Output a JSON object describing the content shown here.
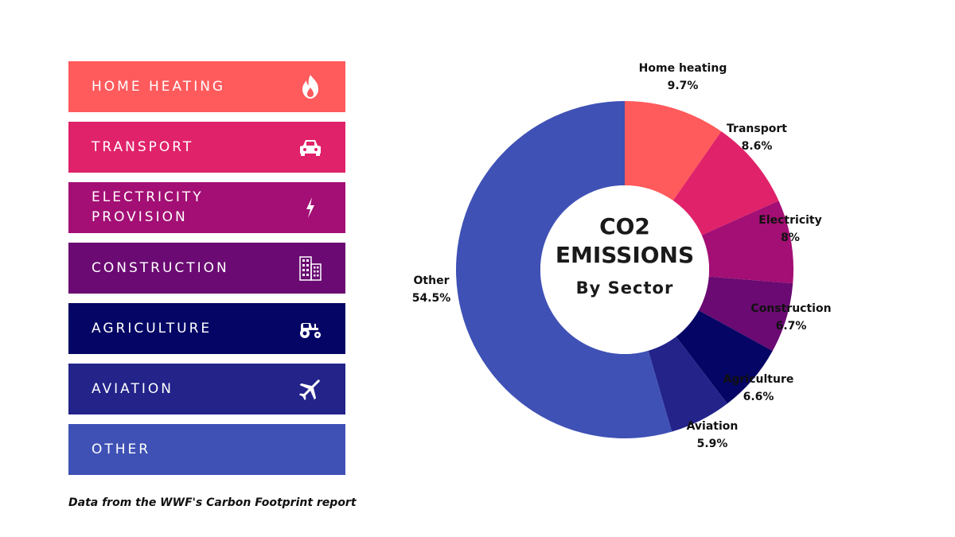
{
  "legend": {
    "items": [
      {
        "label": "HOME HEATING",
        "color": "#FF5A5C",
        "icon": "fire-icon"
      },
      {
        "label": "TRANSPORT",
        "color": "#E0226A",
        "icon": "car-icon"
      },
      {
        "label": "ELECTRICITY PROVISION",
        "color": "#A30F74",
        "icon": "lightning-icon"
      },
      {
        "label": "CONSTRUCTION",
        "color": "#6A0A72",
        "icon": "building-icon"
      },
      {
        "label": "AGRICULTURE",
        "color": "#050565",
        "icon": "tractor-icon"
      },
      {
        "label": "AVIATION",
        "color": "#23238A",
        "icon": "airplane-icon"
      },
      {
        "label": "OTHER",
        "color": "#3F51B5",
        "icon": ""
      }
    ]
  },
  "footnote": "Data from the WWF's Carbon Footprint report",
  "center": {
    "line1": "CO2",
    "line2": "EMISSIONS",
    "line3": "By Sector"
  },
  "chart_data": {
    "type": "pie",
    "donut": true,
    "title": "CO2 EMISSIONS By Sector",
    "categories": [
      "Home heating",
      "Transport",
      "Electricity",
      "Construction",
      "Agriculture",
      "Aviation",
      "Other"
    ],
    "values": [
      9.7,
      8.6,
      8,
      6.7,
      6.6,
      5.9,
      54.5
    ],
    "value_labels": [
      "9.7%",
      "8.6%",
      "8%",
      "6.7%",
      "6.6%",
      "5.9%",
      "54.5%"
    ],
    "colors": [
      "#FF5A5C",
      "#E0226A",
      "#A30F74",
      "#6A0A72",
      "#050565",
      "#23238A",
      "#3F51B5"
    ],
    "start": "top",
    "direction": "clockwise"
  }
}
